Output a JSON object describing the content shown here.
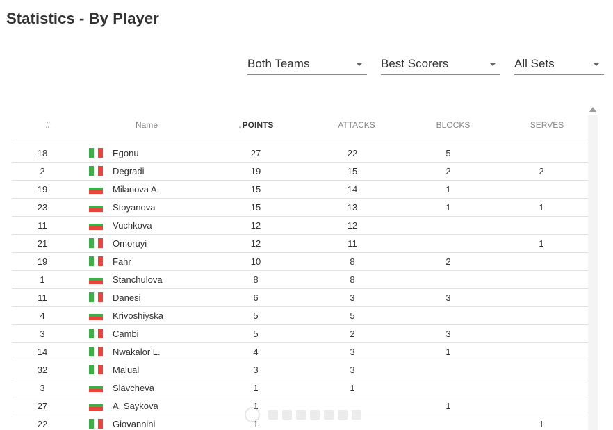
{
  "page": {
    "title": "Statistics - By Player"
  },
  "filters": [
    {
      "id": "team",
      "value": "Both Teams"
    },
    {
      "id": "type",
      "value": "Best Scorers"
    },
    {
      "id": "sets",
      "value": "All Sets"
    }
  ],
  "table": {
    "columns": {
      "num": "#",
      "name": "Name",
      "points": "POINTS",
      "attacks": "ATTACKS",
      "blocks": "BLOCKS",
      "serves": "SERVES"
    },
    "sort_icon": "↓",
    "sorted_column": "points",
    "flags": {
      "ita": {
        "layout": "vertical",
        "colors": [
          "#3fae49",
          "#ffffff",
          "#e8453c"
        ]
      },
      "bul": {
        "layout": "horizontal",
        "colors": [
          "#ffffff",
          "#3fae49",
          "#e8453c"
        ]
      }
    },
    "rows": [
      {
        "num": "18",
        "flag": "ita",
        "name": "Egonu",
        "points": "27",
        "attacks": "22",
        "blocks": "5",
        "serves": ""
      },
      {
        "num": "2",
        "flag": "ita",
        "name": "Degradi",
        "points": "19",
        "attacks": "15",
        "blocks": "2",
        "serves": "2"
      },
      {
        "num": "19",
        "flag": "bul",
        "name": "Milanova A.",
        "points": "15",
        "attacks": "14",
        "blocks": "1",
        "serves": ""
      },
      {
        "num": "23",
        "flag": "bul",
        "name": "Stoyanova",
        "points": "15",
        "attacks": "13",
        "blocks": "1",
        "serves": "1"
      },
      {
        "num": "11",
        "flag": "bul",
        "name": "Vuchkova",
        "points": "12",
        "attacks": "12",
        "blocks": "",
        "serves": ""
      },
      {
        "num": "21",
        "flag": "ita",
        "name": "Omoruyi",
        "points": "12",
        "attacks": "11",
        "blocks": "",
        "serves": "1"
      },
      {
        "num": "19",
        "flag": "ita",
        "name": "Fahr",
        "points": "10",
        "attacks": "8",
        "blocks": "2",
        "serves": ""
      },
      {
        "num": "1",
        "flag": "bul",
        "name": "Stanchulova",
        "points": "8",
        "attacks": "8",
        "blocks": "",
        "serves": ""
      },
      {
        "num": "11",
        "flag": "ita",
        "name": "Danesi",
        "points": "6",
        "attacks": "3",
        "blocks": "3",
        "serves": ""
      },
      {
        "num": "4",
        "flag": "bul",
        "name": "Krivoshiyska",
        "points": "5",
        "attacks": "5",
        "blocks": "",
        "serves": ""
      },
      {
        "num": "3",
        "flag": "ita",
        "name": "Cambi",
        "points": "5",
        "attacks": "2",
        "blocks": "3",
        "serves": ""
      },
      {
        "num": "14",
        "flag": "ita",
        "name": "Nwakalor L.",
        "points": "4",
        "attacks": "3",
        "blocks": "1",
        "serves": ""
      },
      {
        "num": "32",
        "flag": "ita",
        "name": "Malual",
        "points": "3",
        "attacks": "3",
        "blocks": "",
        "serves": ""
      },
      {
        "num": "3",
        "flag": "bul",
        "name": "Slavcheva",
        "points": "1",
        "attacks": "1",
        "blocks": "",
        "serves": ""
      },
      {
        "num": "27",
        "flag": "bul",
        "name": "A. Saykova",
        "points": "1",
        "attacks": "",
        "blocks": "1",
        "serves": ""
      },
      {
        "num": "22",
        "flag": "ita",
        "name": "Giovannini",
        "points": "1",
        "attacks": "",
        "blocks": "",
        "serves": "1"
      }
    ]
  }
}
